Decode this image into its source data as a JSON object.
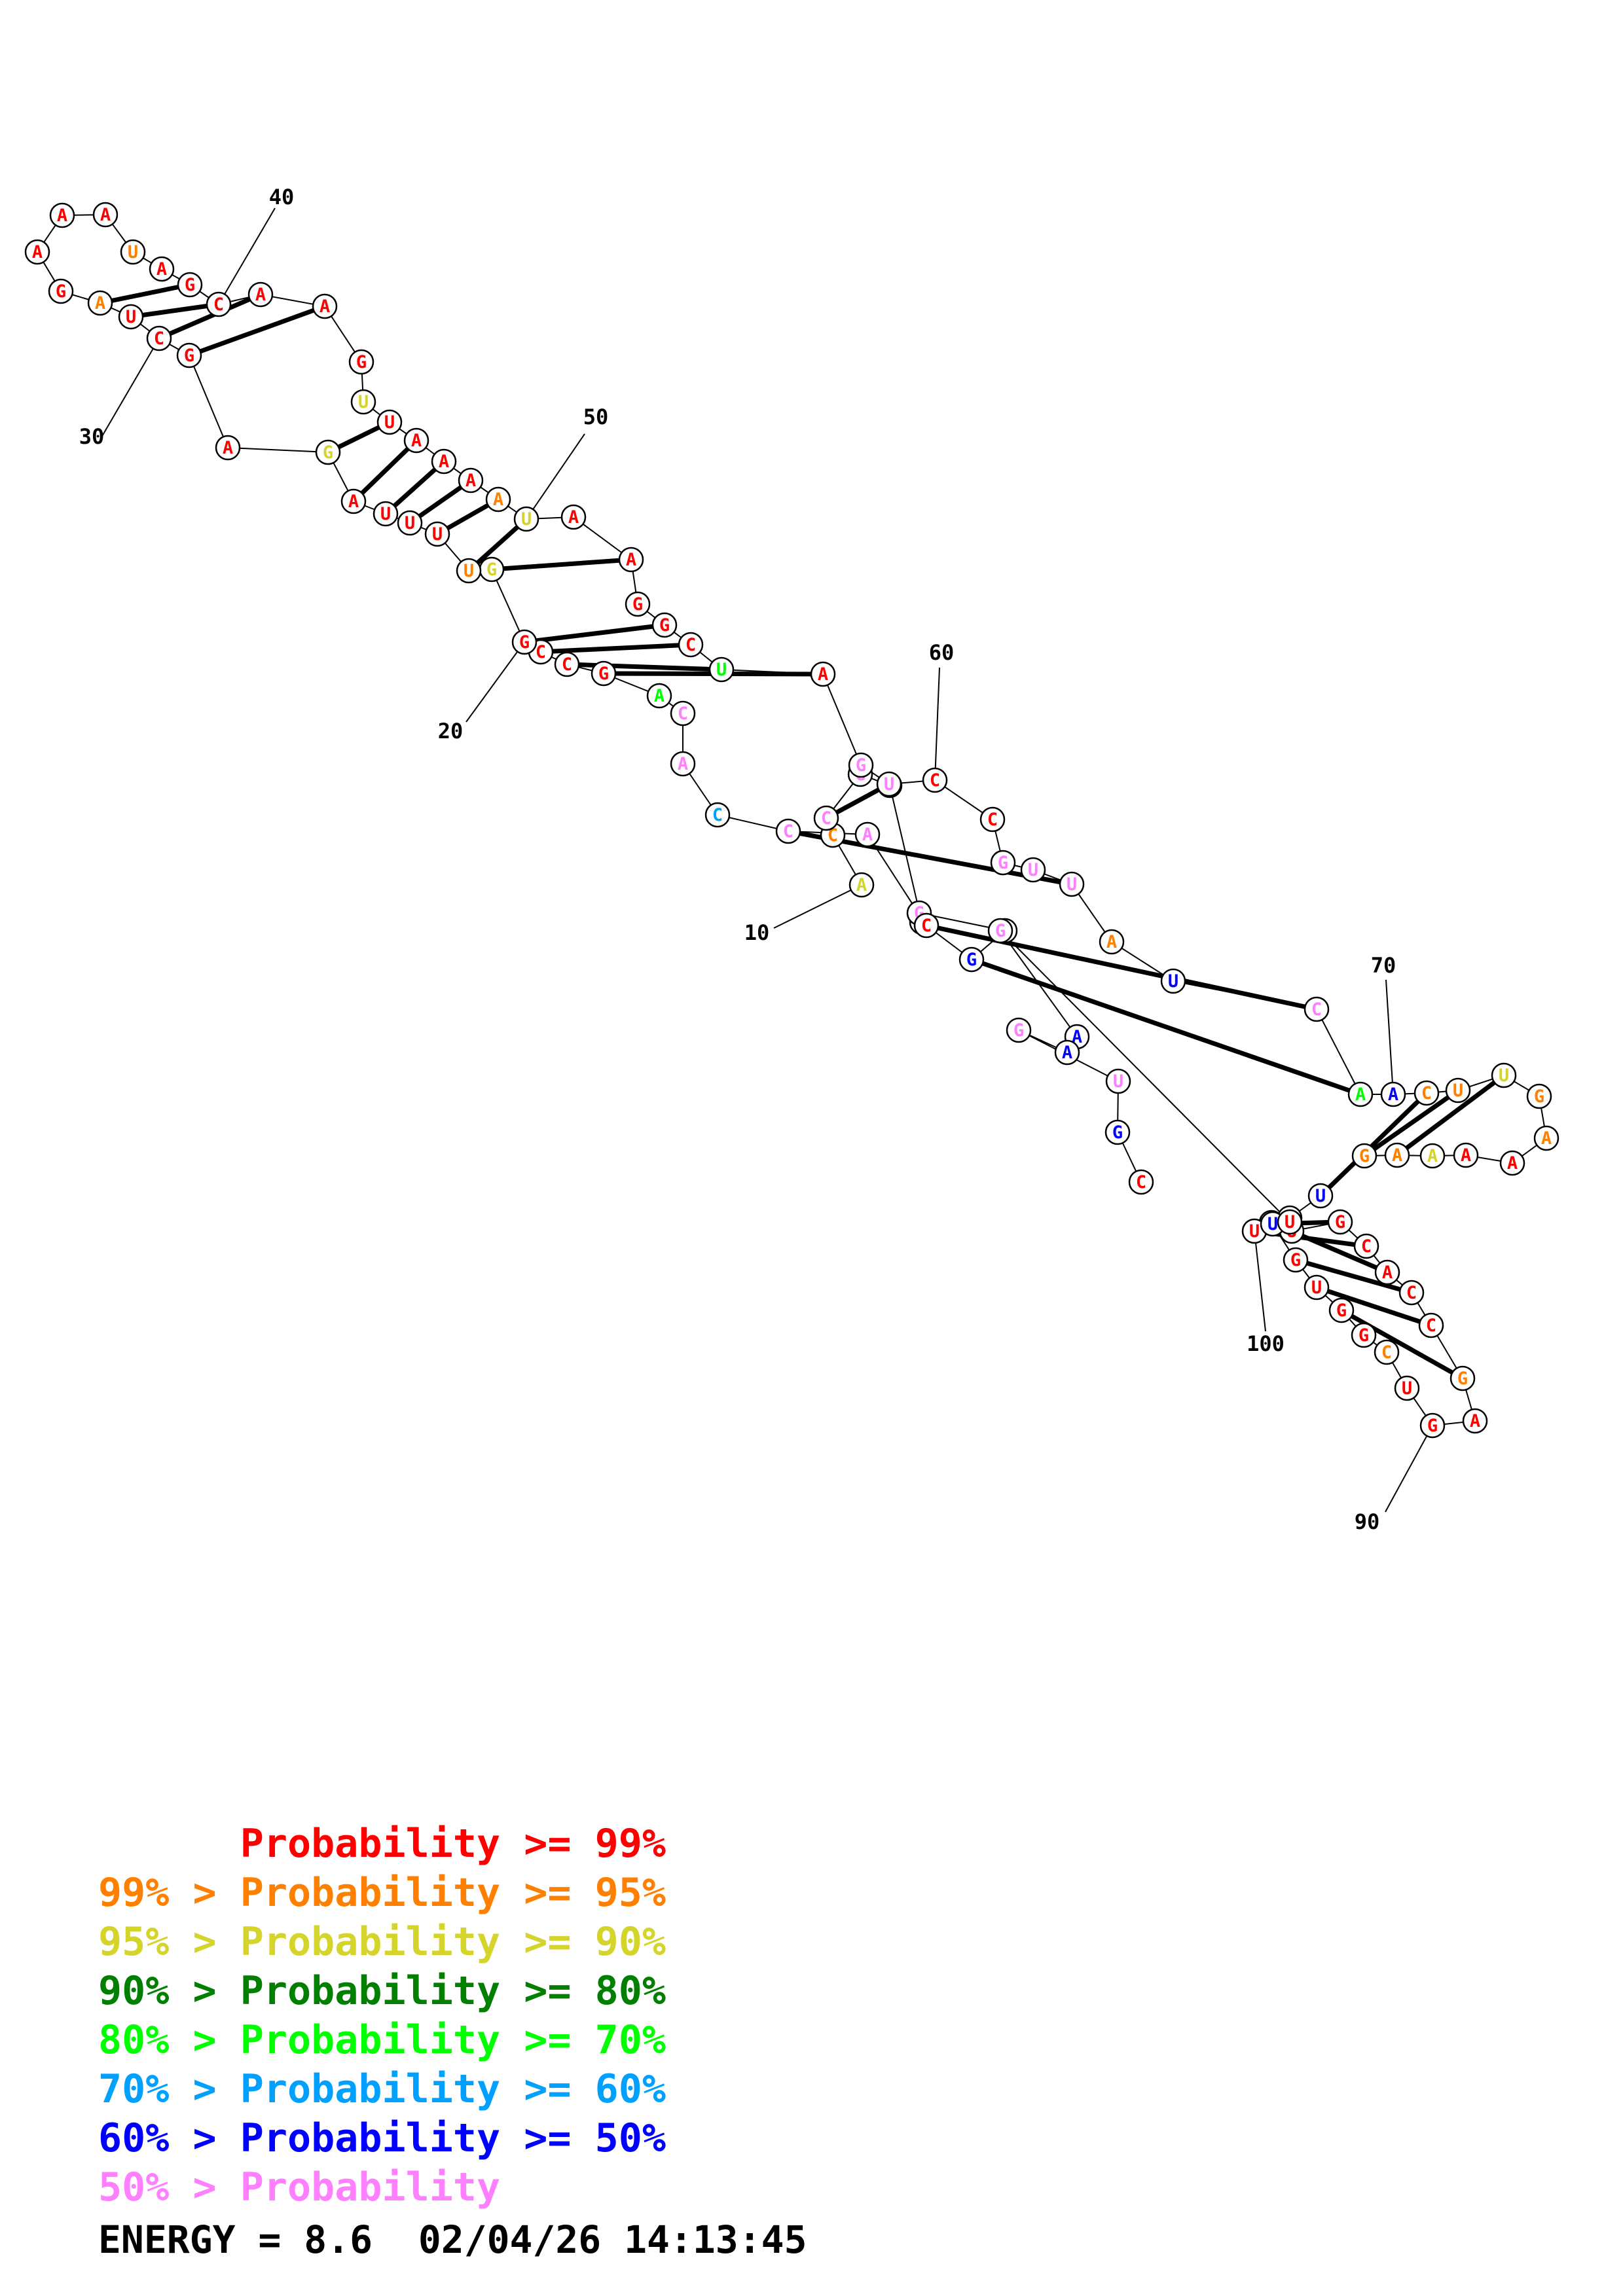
{
  "colors": {
    "p99": "#ff0000",
    "p95": "#ff8000",
    "p90": "#d4d42a",
    "p80": "#007f00",
    "p70": "#00ff00",
    "p60": "#00a0ff",
    "p50": "#0000ff",
    "plow": "#ff80ff"
  },
  "structure": {
    "nucleotides": [
      {
        "b": "A",
        "c": "p90"
      },
      {
        "b": "C",
        "c": "p95"
      },
      {
        "b": "C",
        "c": "plow"
      },
      {
        "b": "G",
        "c": "plow"
      },
      {
        "b": "A",
        "c": "p50"
      },
      {
        "b": "A",
        "c": "p50"
      },
      {
        "b": "G",
        "c": "plow"
      },
      {
        "b": "U",
        "c": "plow"
      },
      {
        "b": "G",
        "c": "p50"
      },
      {
        "b": "C",
        "c": "p99"
      },
      {
        "b": "A",
        "c": "plow"
      },
      {
        "b": "C",
        "c": "plow"
      },
      {
        "b": "C",
        "c": "p60"
      },
      {
        "b": "A",
        "c": "plow"
      },
      {
        "b": "C",
        "c": "plow"
      },
      {
        "b": "A",
        "c": "p70"
      },
      {
        "b": "G",
        "c": "p99"
      },
      {
        "b": "C",
        "c": "p99"
      },
      {
        "b": "C",
        "c": "p99"
      },
      {
        "b": "G",
        "c": "p99"
      },
      {
        "b": "G",
        "c": "p90"
      },
      {
        "b": "U",
        "c": "p95"
      },
      {
        "b": "U",
        "c": "p99"
      },
      {
        "b": "U",
        "c": "p99"
      },
      {
        "b": "U",
        "c": "p99"
      },
      {
        "b": "A",
        "c": "p99"
      },
      {
        "b": "G",
        "c": "p90"
      },
      {
        "b": "A",
        "c": "p99"
      },
      {
        "b": "G",
        "c": "p99"
      },
      {
        "b": "C",
        "c": "p99"
      },
      {
        "b": "U",
        "c": "p99"
      },
      {
        "b": "A",
        "c": "p95"
      },
      {
        "b": "G",
        "c": "p99"
      },
      {
        "b": "A",
        "c": "p99"
      },
      {
        "b": "A",
        "c": "p99"
      },
      {
        "b": "A",
        "c": "p99"
      },
      {
        "b": "U",
        "c": "p95"
      },
      {
        "b": "A",
        "c": "p99"
      },
      {
        "b": "G",
        "c": "p99"
      },
      {
        "b": "C",
        "c": "p99"
      },
      {
        "b": "A",
        "c": "p99"
      },
      {
        "b": "A",
        "c": "p99"
      },
      {
        "b": "G",
        "c": "p99"
      },
      {
        "b": "U",
        "c": "p90"
      },
      {
        "b": "U",
        "c": "p99"
      },
      {
        "b": "A",
        "c": "p99"
      },
      {
        "b": "A",
        "c": "p99"
      },
      {
        "b": "A",
        "c": "p99"
      },
      {
        "b": "A",
        "c": "p95"
      },
      {
        "b": "U",
        "c": "p90"
      },
      {
        "b": "A",
        "c": "p99"
      },
      {
        "b": "A",
        "c": "p99"
      },
      {
        "b": "G",
        "c": "p99"
      },
      {
        "b": "G",
        "c": "p99"
      },
      {
        "b": "C",
        "c": "p99"
      },
      {
        "b": "U",
        "c": "p70"
      },
      {
        "b": "A",
        "c": "p99"
      },
      {
        "b": "G",
        "c": "plow"
      },
      {
        "b": "U",
        "c": "plow"
      },
      {
        "b": "C",
        "c": "p99"
      },
      {
        "b": "C",
        "c": "p99"
      },
      {
        "b": "G",
        "c": "plow"
      },
      {
        "b": "U",
        "c": "plow"
      },
      {
        "b": "U",
        "c": "plow"
      },
      {
        "b": "A",
        "c": "p95"
      },
      {
        "b": "U",
        "c": "p50"
      },
      {
        "b": "C",
        "c": "plow"
      },
      {
        "b": "A",
        "c": "p70"
      },
      {
        "b": "A",
        "c": "p50"
      },
      {
        "b": "C",
        "c": "p95"
      },
      {
        "b": "U",
        "c": "p95"
      },
      {
        "b": "U",
        "c": "p90"
      },
      {
        "b": "G",
        "c": "p95"
      },
      {
        "b": "A",
        "c": "p95"
      },
      {
        "b": "A",
        "c": "p99"
      },
      {
        "b": "A",
        "c": "p99"
      },
      {
        "b": "A",
        "c": "p90"
      },
      {
        "b": "A",
        "c": "p95"
      },
      {
        "b": "G",
        "c": "p95"
      },
      {
        "b": "U",
        "c": "p50"
      },
      {
        "b": "G",
        "c": "p50"
      },
      {
        "b": "U",
        "c": "p99"
      },
      {
        "b": "G",
        "c": "p99"
      },
      {
        "b": "C",
        "c": "p99"
      },
      {
        "b": "A",
        "c": "p99"
      },
      {
        "b": "C",
        "c": "p99"
      },
      {
        "b": "C",
        "c": "p99"
      },
      {
        "b": "G",
        "c": "p95"
      },
      {
        "b": "A",
        "c": "p99"
      },
      {
        "b": "G",
        "c": "p99"
      },
      {
        "b": "U",
        "c": "p99"
      },
      {
        "b": "C",
        "c": "p95"
      },
      {
        "b": "G",
        "c": "p99"
      },
      {
        "b": "G",
        "c": "p99"
      },
      {
        "b": "U",
        "c": "p99"
      },
      {
        "b": "G",
        "c": "p99"
      },
      {
        "b": "C",
        "c": "p99"
      },
      {
        "b": "U",
        "c": "p99"
      },
      {
        "b": "U",
        "c": "p50"
      },
      {
        "b": "U",
        "c": "p99"
      },
      {
        "b": "G",
        "c": "plow"
      },
      {
        "b": "A",
        "c": "p50"
      },
      {
        "b": "A",
        "c": "p50"
      },
      {
        "b": "G",
        "c": "plow"
      },
      {
        "b": "U",
        "c": "plow"
      },
      {
        "b": "G",
        "c": "p50"
      },
      {
        "b": "C",
        "c": "p99"
      }
    ],
    "pairs": [
      [
        2,
        58
      ],
      [
        3,
        57
      ],
      [
        8,
        67
      ],
      [
        9,
        66
      ],
      [
        11,
        63
      ],
      [
        16,
        56
      ],
      [
        17,
        55
      ],
      [
        18,
        54
      ],
      [
        19,
        53
      ],
      [
        20,
        51
      ],
      [
        21,
        49
      ],
      [
        22,
        48
      ],
      [
        23,
        47
      ],
      [
        24,
        46
      ],
      [
        25,
        45
      ],
      [
        26,
        44
      ],
      [
        28,
        41
      ],
      [
        29,
        40
      ],
      [
        30,
        39
      ],
      [
        31,
        38
      ],
      [
        69,
        79
      ],
      [
        70,
        78
      ],
      [
        71,
        77
      ],
      [
        81,
        99
      ],
      [
        82,
        98
      ],
      [
        83,
        97
      ],
      [
        84,
        96
      ],
      [
        85,
        95
      ],
      [
        86,
        94
      ],
      [
        87,
        93
      ]
    ],
    "number_labels": [
      "10",
      "20",
      "30",
      "40",
      "50",
      "60",
      "70",
      "90",
      "100"
    ]
  },
  "legend": {
    "lines": [
      {
        "text": "      Probability >= 99%",
        "color": "p99"
      },
      {
        "text": "99% > Probability >= 95%",
        "color": "p95"
      },
      {
        "text": "95% > Probability >= 90%",
        "color": "p90"
      },
      {
        "text": "90% > Probability >= 80%",
        "color": "p80"
      },
      {
        "text": "80% > Probability >= 70%",
        "color": "p70"
      },
      {
        "text": "70% > Probability >= 60%",
        "color": "p60"
      },
      {
        "text": "60% > Probability >= 50%",
        "color": "p50"
      },
      {
        "text": "50% > Probability",
        "color": "plow"
      }
    ],
    "energy": "ENERGY = 8.6  02/04/26 14:13:45"
  }
}
